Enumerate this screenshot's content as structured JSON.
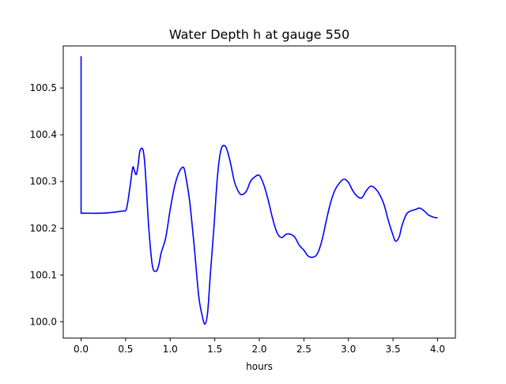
{
  "chart_data": {
    "type": "line",
    "title": "Water Depth h at gauge 550",
    "xlabel": "hours",
    "ylabel": "",
    "xlim": [
      -0.2,
      4.2
    ],
    "ylim": [
      99.965,
      100.59
    ],
    "grid": false,
    "x_ticks": [
      0.0,
      0.5,
      1.0,
      1.5,
      2.0,
      2.5,
      3.0,
      3.5,
      4.0
    ],
    "x_tick_labels": [
      "0.0",
      "0.5",
      "1.0",
      "1.5",
      "2.0",
      "2.5",
      "3.0",
      "3.5",
      "4.0"
    ],
    "y_ticks": [
      100.0,
      100.1,
      100.2,
      100.3,
      100.4,
      100.5
    ],
    "y_tick_labels": [
      "100.0",
      "100.1",
      "100.2",
      "100.3",
      "100.4",
      "100.5"
    ],
    "series": [
      {
        "color": "#0000ff",
        "x": [
          0.0,
          0.0,
          0.0,
          0.1,
          0.2,
          0.3,
          0.4,
          0.47,
          0.51,
          0.55,
          0.58,
          0.6,
          0.62,
          0.64,
          0.66,
          0.69,
          0.71,
          0.73,
          0.76,
          0.8,
          0.84,
          0.87,
          0.9,
          0.95,
          1.0,
          1.05,
          1.1,
          1.15,
          1.18,
          1.22,
          1.27,
          1.32,
          1.36,
          1.39,
          1.42,
          1.45,
          1.49,
          1.53,
          1.57,
          1.62,
          1.67,
          1.72,
          1.77,
          1.81,
          1.86,
          1.9,
          1.95,
          2.0,
          2.05,
          2.1,
          2.15,
          2.2,
          2.25,
          2.3,
          2.35,
          2.4,
          2.45,
          2.5,
          2.55,
          2.6,
          2.65,
          2.7,
          2.75,
          2.8,
          2.85,
          2.9,
          2.95,
          3.0,
          3.05,
          3.1,
          3.15,
          3.2,
          3.25,
          3.3,
          3.35,
          3.4,
          3.45,
          3.5,
          3.53,
          3.57,
          3.6,
          3.65,
          3.7,
          3.75,
          3.8,
          3.85,
          3.9,
          3.95,
          4.0
        ],
        "y": [
          100.568,
          100.415,
          100.232,
          100.232,
          100.232,
          100.233,
          100.235,
          100.237,
          100.242,
          100.29,
          100.33,
          100.322,
          100.315,
          100.335,
          100.365,
          100.37,
          100.348,
          100.295,
          100.2,
          100.12,
          100.108,
          100.12,
          100.148,
          100.18,
          100.24,
          100.29,
          100.32,
          100.33,
          100.305,
          100.255,
          100.16,
          100.055,
          100.012,
          99.995,
          100.02,
          100.1,
          100.2,
          100.31,
          100.368,
          100.375,
          100.345,
          100.3,
          100.277,
          100.272,
          100.281,
          100.3,
          100.31,
          100.313,
          100.293,
          100.26,
          100.22,
          100.19,
          100.18,
          100.187,
          100.187,
          100.18,
          100.163,
          100.153,
          100.14,
          100.138,
          100.145,
          100.172,
          100.215,
          100.255,
          100.282,
          100.297,
          100.305,
          100.298,
          100.28,
          100.268,
          100.265,
          100.28,
          100.29,
          100.285,
          100.272,
          100.25,
          100.215,
          100.185,
          100.172,
          100.182,
          100.205,
          100.23,
          100.237,
          100.24,
          100.243,
          100.237,
          100.228,
          100.224,
          100.222
        ]
      }
    ]
  }
}
